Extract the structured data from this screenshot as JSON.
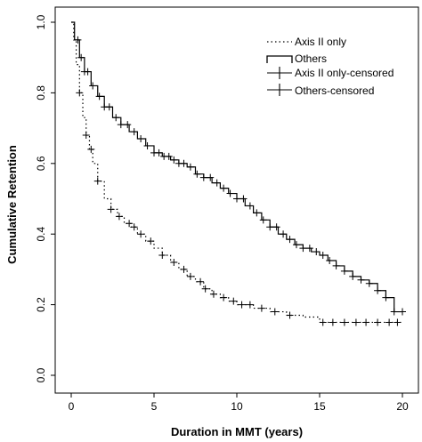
{
  "chart_data": {
    "type": "line",
    "xlabel": "Duration in MMT (years)",
    "ylabel": "Cumulative Retention",
    "xlim": [
      0,
      20
    ],
    "ylim": [
      0,
      1
    ],
    "x_ticks": [
      0,
      5,
      10,
      15,
      20
    ],
    "y_ticks": [
      "0.0",
      "0.2",
      "0.4",
      "0.6",
      "0.8",
      "1.0"
    ],
    "grid": false,
    "legend_position": "top-right",
    "legend": [
      {
        "label": "Axis II only",
        "style": "dotted"
      },
      {
        "label": "Others",
        "style": "step"
      },
      {
        "label": "Axis II only-censored",
        "style": "plus"
      },
      {
        "label": "Others-censored",
        "style": "plus"
      }
    ],
    "series": [
      {
        "name": "Axis II only",
        "style": "dotted",
        "x": [
          0.0,
          0.15,
          0.3,
          0.5,
          0.7,
          0.9,
          1.1,
          1.3,
          1.6,
          2.0,
          2.4,
          2.8,
          3.2,
          3.6,
          4.0,
          4.5,
          5.0,
          5.5,
          6.0,
          6.5,
          7.0,
          7.5,
          8.0,
          8.5,
          9.0,
          9.5,
          10.0,
          11.0,
          12.0,
          13.0,
          14.0,
          15.0,
          17.0,
          20.0
        ],
        "y": [
          1.0,
          0.95,
          0.88,
          0.8,
          0.73,
          0.68,
          0.64,
          0.6,
          0.55,
          0.5,
          0.47,
          0.45,
          0.43,
          0.42,
          0.4,
          0.38,
          0.36,
          0.34,
          0.32,
          0.3,
          0.28,
          0.265,
          0.245,
          0.23,
          0.22,
          0.21,
          0.2,
          0.19,
          0.18,
          0.17,
          0.165,
          0.15,
          0.15,
          0.15
        ],
        "censored_x": [
          0.5,
          0.9,
          1.2,
          1.6,
          2.4,
          2.9,
          3.5,
          3.8,
          4.2,
          4.8,
          5.5,
          6.2,
          6.8,
          7.2,
          7.8,
          8.1,
          8.6,
          9.2,
          9.8,
          10.3,
          10.8,
          11.5,
          12.3,
          13.2,
          15.2,
          15.8,
          16.5,
          17.2,
          17.8,
          18.5,
          19.2,
          19.7
        ]
      },
      {
        "name": "Others",
        "style": "step",
        "x": [
          0.0,
          0.2,
          0.5,
          0.8,
          1.2,
          1.6,
          2.0,
          2.5,
          3.0,
          3.5,
          4.0,
          4.5,
          5.0,
          5.5,
          6.0,
          6.5,
          7.0,
          7.5,
          8.0,
          8.5,
          9.0,
          9.5,
          10.0,
          10.5,
          11.0,
          11.5,
          12.0,
          12.5,
          13.0,
          13.5,
          14.0,
          14.5,
          15.0,
          15.5,
          16.0,
          16.5,
          17.0,
          17.5,
          18.0,
          18.5,
          19.0,
          19.5,
          20.0
        ],
        "y": [
          1.0,
          0.95,
          0.9,
          0.86,
          0.82,
          0.79,
          0.76,
          0.73,
          0.71,
          0.69,
          0.67,
          0.65,
          0.63,
          0.62,
          0.61,
          0.6,
          0.59,
          0.57,
          0.56,
          0.545,
          0.53,
          0.515,
          0.5,
          0.48,
          0.46,
          0.44,
          0.42,
          0.4,
          0.385,
          0.37,
          0.36,
          0.35,
          0.34,
          0.325,
          0.31,
          0.295,
          0.28,
          0.27,
          0.26,
          0.24,
          0.22,
          0.18,
          0.18
        ],
        "censored_x": [
          0.4,
          0.6,
          0.8,
          1.0,
          1.3,
          1.7,
          2.0,
          2.3,
          2.7,
          3.0,
          3.4,
          3.8,
          4.2,
          4.6,
          5.0,
          5.3,
          5.6,
          5.9,
          6.2,
          6.5,
          6.8,
          7.2,
          7.6,
          8.0,
          8.4,
          8.8,
          9.2,
          9.6,
          10.0,
          10.4,
          10.8,
          11.2,
          11.6,
          12.0,
          12.4,
          12.8,
          13.2,
          13.6,
          14.0,
          14.4,
          14.8,
          15.2,
          15.6,
          16.0,
          16.5,
          17.0,
          17.5,
          18.0,
          18.5,
          19.0,
          19.5,
          20.0
        ]
      }
    ]
  }
}
